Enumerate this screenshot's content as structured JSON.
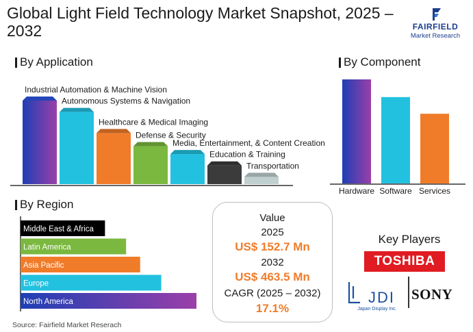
{
  "title": "Global Light Field Technology Market Snapshot, 2025 – 2032",
  "brand": {
    "name": "FAIRFIELD",
    "sub": "Market Research"
  },
  "sections": {
    "application": "By Application",
    "component": "By Component",
    "region": "By Region"
  },
  "colors": {
    "purple_blue_gradient": [
      "#1d3fb5",
      "#9b3fa8"
    ],
    "blue": "#1e9bd7",
    "cyan": "#22c1e0",
    "orange": "#f07c2a",
    "green": "#7ab83f",
    "gray": "#3b3b3b",
    "light_gray": "#c0cfcf",
    "black": "#000000",
    "value_orange": "#f07c2a",
    "toshiba_red": "#e01b22",
    "jdi_blue": "#1b4fa0"
  },
  "value_box": {
    "label": "Value",
    "year1": "2025",
    "value1": "US$ 152.7 Mn",
    "year2": "2032",
    "value2": "US$ 463.5 Mn",
    "cagr_label": "CAGR (2025 – 2032)",
    "cagr_value": "17.1%"
  },
  "key_players": {
    "title": "Key Players",
    "players": [
      "TOSHIBA",
      "JDI",
      "SONY"
    ],
    "jdi_sub": "Japan Display Inc."
  },
  "source": "Source: Fairfield Market Reserach",
  "chart_data": [
    {
      "type": "bar",
      "title": "By Application",
      "categories": [
        "Industrial Automation & Machine Vision",
        "Autonomous Systems & Navigation",
        "Healthcare & Medical Imaging",
        "Defense & Security",
        "Media, Entertainment, & Content Creation",
        "Education & Training",
        "Transportation"
      ],
      "values": [
        100,
        87,
        63,
        48,
        39,
        26,
        13
      ],
      "colors": [
        "gradient",
        "#22c1e0",
        "#f07c2a",
        "#7ab83f",
        "#22c1e0",
        "#3b3b3b",
        "#c0cfcf"
      ],
      "grid": false,
      "legend": "none"
    },
    {
      "type": "bar",
      "title": "By Component",
      "categories": [
        "Hardware",
        "Software",
        "Services"
      ],
      "values": [
        100,
        83,
        67
      ],
      "colors": [
        "gradient",
        "#22c1e0",
        "#f07c2a"
      ],
      "grid": false,
      "legend": "none"
    },
    {
      "type": "bar",
      "orientation": "horizontal",
      "title": "By Region",
      "categories": [
        "Middle East & Africa",
        "Latin America",
        "Asia Pacific",
        "Europe",
        "North America"
      ],
      "values": [
        48,
        60,
        68,
        80,
        100
      ],
      "colors": [
        "#000000",
        "#7ab83f",
        "#f07c2a",
        "#22c1e0",
        "gradient"
      ],
      "grid": false,
      "legend": "none"
    }
  ]
}
